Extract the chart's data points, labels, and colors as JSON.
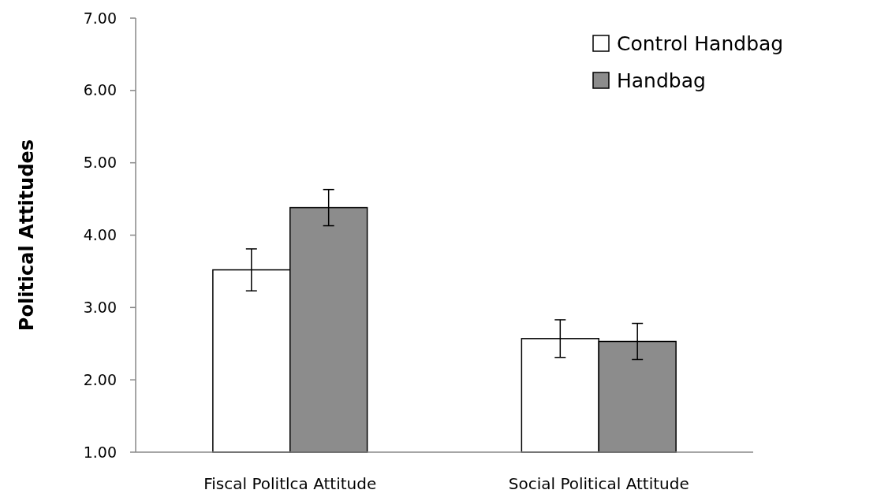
{
  "chart_data": {
    "type": "bar",
    "ylabel": "Political Attitudes",
    "categories": [
      "Fiscal Politlca Attitude",
      "Social Political Attitude"
    ],
    "series": [
      {
        "name": "Control Handbag",
        "color": "#ffffff",
        "values": [
          3.52,
          2.57
        ],
        "errors": [
          0.29,
          0.26
        ]
      },
      {
        "name": "Handbag",
        "color": "#8c8c8c",
        "values": [
          4.38,
          2.53
        ],
        "errors": [
          0.25,
          0.25
        ]
      }
    ],
    "ylim": [
      1,
      7
    ],
    "yticks": [
      {
        "value": 1,
        "label": "1.00"
      },
      {
        "value": 2,
        "label": "2.00"
      },
      {
        "value": 3,
        "label": "3.00"
      },
      {
        "value": 4,
        "label": "4.00"
      },
      {
        "value": 5,
        "label": "5.00"
      },
      {
        "value": 6,
        "label": "6.00"
      },
      {
        "value": 7,
        "label": "7.00"
      }
    ],
    "grid": false,
    "legend": "top right"
  }
}
